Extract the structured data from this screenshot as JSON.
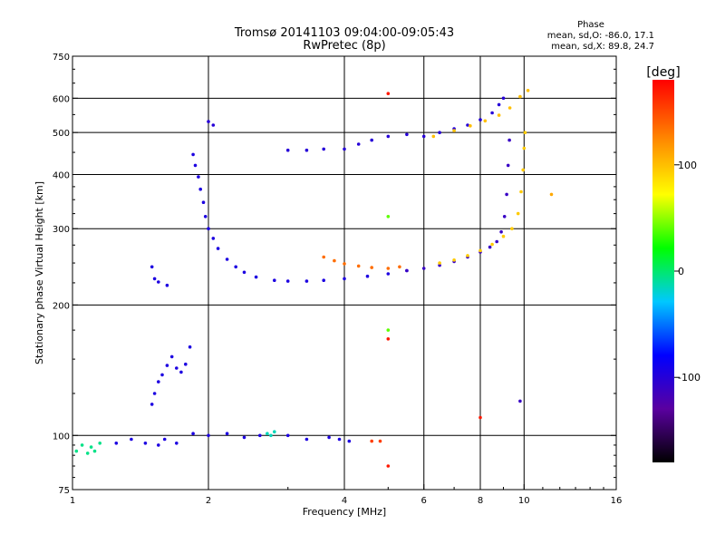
{
  "chart_data": {
    "type": "scatter",
    "title": "Tromsø 20141103 09:04:00-09:05:43",
    "subtitle": "RwPretec (8p)",
    "xlabel": "Frequency [MHz]",
    "ylabel": "Stationary phase Virtual Height [km]",
    "x_scale": "log2",
    "y_scale": "log",
    "xlim": [
      1,
      16
    ],
    "ylim": [
      75,
      750
    ],
    "x_ticks": [
      1,
      2,
      4,
      6,
      8,
      10,
      16
    ],
    "x_tick_labels": [
      "1",
      "2",
      "4",
      "6",
      "8",
      "10",
      "16"
    ],
    "y_ticks": [
      75,
      100,
      200,
      300,
      400,
      500,
      600,
      750
    ],
    "y_tick_labels": [
      "75",
      "100",
      "200",
      "300",
      "400",
      "500",
      "600",
      "750"
    ],
    "grid": true,
    "phase_info": {
      "title": "Phase",
      "line_o": "mean, sd,O: -86.0, 17.1",
      "line_x": "mean, sd,X:  89.8, 24.7"
    },
    "colorbar": {
      "label": "[deg]",
      "min": -180,
      "max": 180,
      "ticks": [
        100,
        0,
        -100
      ],
      "tick_labels": [
        "100",
        "0",
        "-100"
      ],
      "stops": [
        "#000000",
        "#5a00a0",
        "#0000ff",
        "#00c8ff",
        "#00ff00",
        "#ffff00",
        "#ff8c00",
        "#ff0000"
      ]
    },
    "series": [
      {
        "points": [
          [
            1.02,
            92
          ],
          [
            1.05,
            95
          ],
          [
            1.08,
            91
          ],
          [
            1.1,
            94
          ],
          [
            1.12,
            92
          ],
          [
            1.15,
            96
          ]
        ],
        "phase": -5
      },
      {
        "points": [
          [
            1.25,
            96
          ],
          [
            1.35,
            98
          ],
          [
            1.45,
            96
          ],
          [
            1.55,
            95
          ],
          [
            1.6,
            98
          ],
          [
            1.7,
            96
          ],
          [
            1.85,
            101
          ],
          [
            2.0,
            100
          ],
          [
            2.2,
            101
          ],
          [
            2.4,
            99
          ],
          [
            2.6,
            100
          ],
          [
            3.0,
            100
          ],
          [
            3.3,
            98
          ],
          [
            3.7,
            99
          ],
          [
            3.9,
            98
          ],
          [
            4.1,
            97
          ]
        ],
        "phase": -95
      },
      {
        "points": [
          [
            2.7,
            101
          ],
          [
            2.75,
            100
          ],
          [
            2.8,
            102
          ]
        ],
        "phase": -15
      },
      {
        "points": [
          [
            4.6,
            97
          ],
          [
            4.8,
            97
          ]
        ],
        "phase": 155
      },
      {
        "points": [
          [
            1.5,
            118
          ],
          [
            1.52,
            125
          ],
          [
            1.55,
            133
          ],
          [
            1.58,
            138
          ],
          [
            1.62,
            145
          ],
          [
            1.66,
            152
          ],
          [
            1.7,
            143
          ],
          [
            1.74,
            140
          ],
          [
            1.78,
            146
          ],
          [
            1.82,
            160
          ]
        ],
        "phase": -95
      },
      {
        "points": [
          [
            1.5,
            245
          ],
          [
            1.52,
            230
          ],
          [
            1.55,
            226
          ],
          [
            1.62,
            222
          ]
        ],
        "phase": -95
      },
      {
        "points": [
          [
            1.85,
            445
          ],
          [
            1.87,
            420
          ],
          [
            1.9,
            395
          ],
          [
            1.92,
            370
          ],
          [
            1.95,
            345
          ],
          [
            1.97,
            320
          ],
          [
            2.0,
            300
          ],
          [
            2.05,
            285
          ],
          [
            2.1,
            270
          ],
          [
            2.2,
            255
          ],
          [
            2.3,
            245
          ],
          [
            2.4,
            238
          ],
          [
            2.55,
            232
          ],
          [
            2.8,
            228
          ],
          [
            3.0,
            227
          ],
          [
            3.3,
            227
          ],
          [
            3.6,
            228
          ],
          [
            4.0,
            230
          ],
          [
            4.5,
            233
          ],
          [
            5.0,
            236
          ],
          [
            5.5,
            240
          ]
        ],
        "phase": -95
      },
      {
        "points": [
          [
            5.5,
            240
          ],
          [
            6.0,
            243
          ],
          [
            6.5,
            247
          ],
          [
            7.0,
            252
          ],
          [
            7.5,
            258
          ],
          [
            8.0,
            265
          ],
          [
            8.4,
            272
          ],
          [
            8.7,
            280
          ],
          [
            8.9,
            295
          ],
          [
            9.05,
            320
          ],
          [
            9.15,
            360
          ],
          [
            9.22,
            420
          ],
          [
            9.28,
            480
          ]
        ],
        "phase": -110
      },
      {
        "points": [
          [
            3.6,
            258
          ],
          [
            3.8,
            253
          ],
          [
            4.0,
            249
          ],
          [
            4.3,
            246
          ],
          [
            4.6,
            244
          ],
          [
            5.0,
            243
          ],
          [
            5.3,
            245
          ]
        ],
        "phase": 135
      },
      {
        "points": [
          [
            6.5,
            250
          ],
          [
            7.0,
            254
          ],
          [
            7.5,
            260
          ],
          [
            8.0,
            267
          ],
          [
            8.5,
            276
          ],
          [
            9.0,
            288
          ],
          [
            9.4,
            300
          ],
          [
            9.7,
            325
          ],
          [
            9.85,
            365
          ],
          [
            9.95,
            410
          ],
          [
            10.0,
            460
          ],
          [
            10.05,
            500
          ]
        ],
        "phase": 95
      },
      {
        "points": [
          [
            2.0,
            530
          ],
          [
            2.05,
            520
          ]
        ],
        "phase": -100
      },
      {
        "points": [
          [
            3.0,
            455
          ],
          [
            3.3,
            455
          ],
          [
            3.6,
            458
          ],
          [
            4.0,
            458
          ],
          [
            4.3,
            470
          ],
          [
            4.6,
            480
          ],
          [
            5.0,
            490
          ],
          [
            5.5,
            495
          ],
          [
            6.0,
            490
          ],
          [
            6.5,
            500
          ],
          [
            7.0,
            510
          ],
          [
            7.5,
            520
          ],
          [
            8.0,
            535
          ],
          [
            8.5,
            555
          ],
          [
            8.8,
            580
          ],
          [
            9.0,
            600
          ]
        ],
        "phase": -100
      },
      {
        "points": [
          [
            6.3,
            490
          ],
          [
            7.0,
            505
          ],
          [
            7.6,
            518
          ],
          [
            8.2,
            532
          ],
          [
            8.8,
            548
          ],
          [
            9.3,
            570
          ],
          [
            9.8,
            605
          ],
          [
            10.2,
            625
          ]
        ],
        "phase": 100
      },
      {
        "points": [
          [
            11.5,
            360
          ]
        ],
        "phase": 110
      },
      {
        "points": [
          [
            5.0,
            320
          ],
          [
            5.0,
            175
          ]
        ],
        "phase": 40
      },
      {
        "points": [
          [
            5.0,
            167
          ],
          [
            5.0,
            85
          ],
          [
            5.0,
            615
          ],
          [
            8.0,
            110
          ]
        ],
        "phase": 170
      },
      {
        "points": [
          [
            9.8,
            120
          ]
        ],
        "phase": -110
      }
    ]
  }
}
